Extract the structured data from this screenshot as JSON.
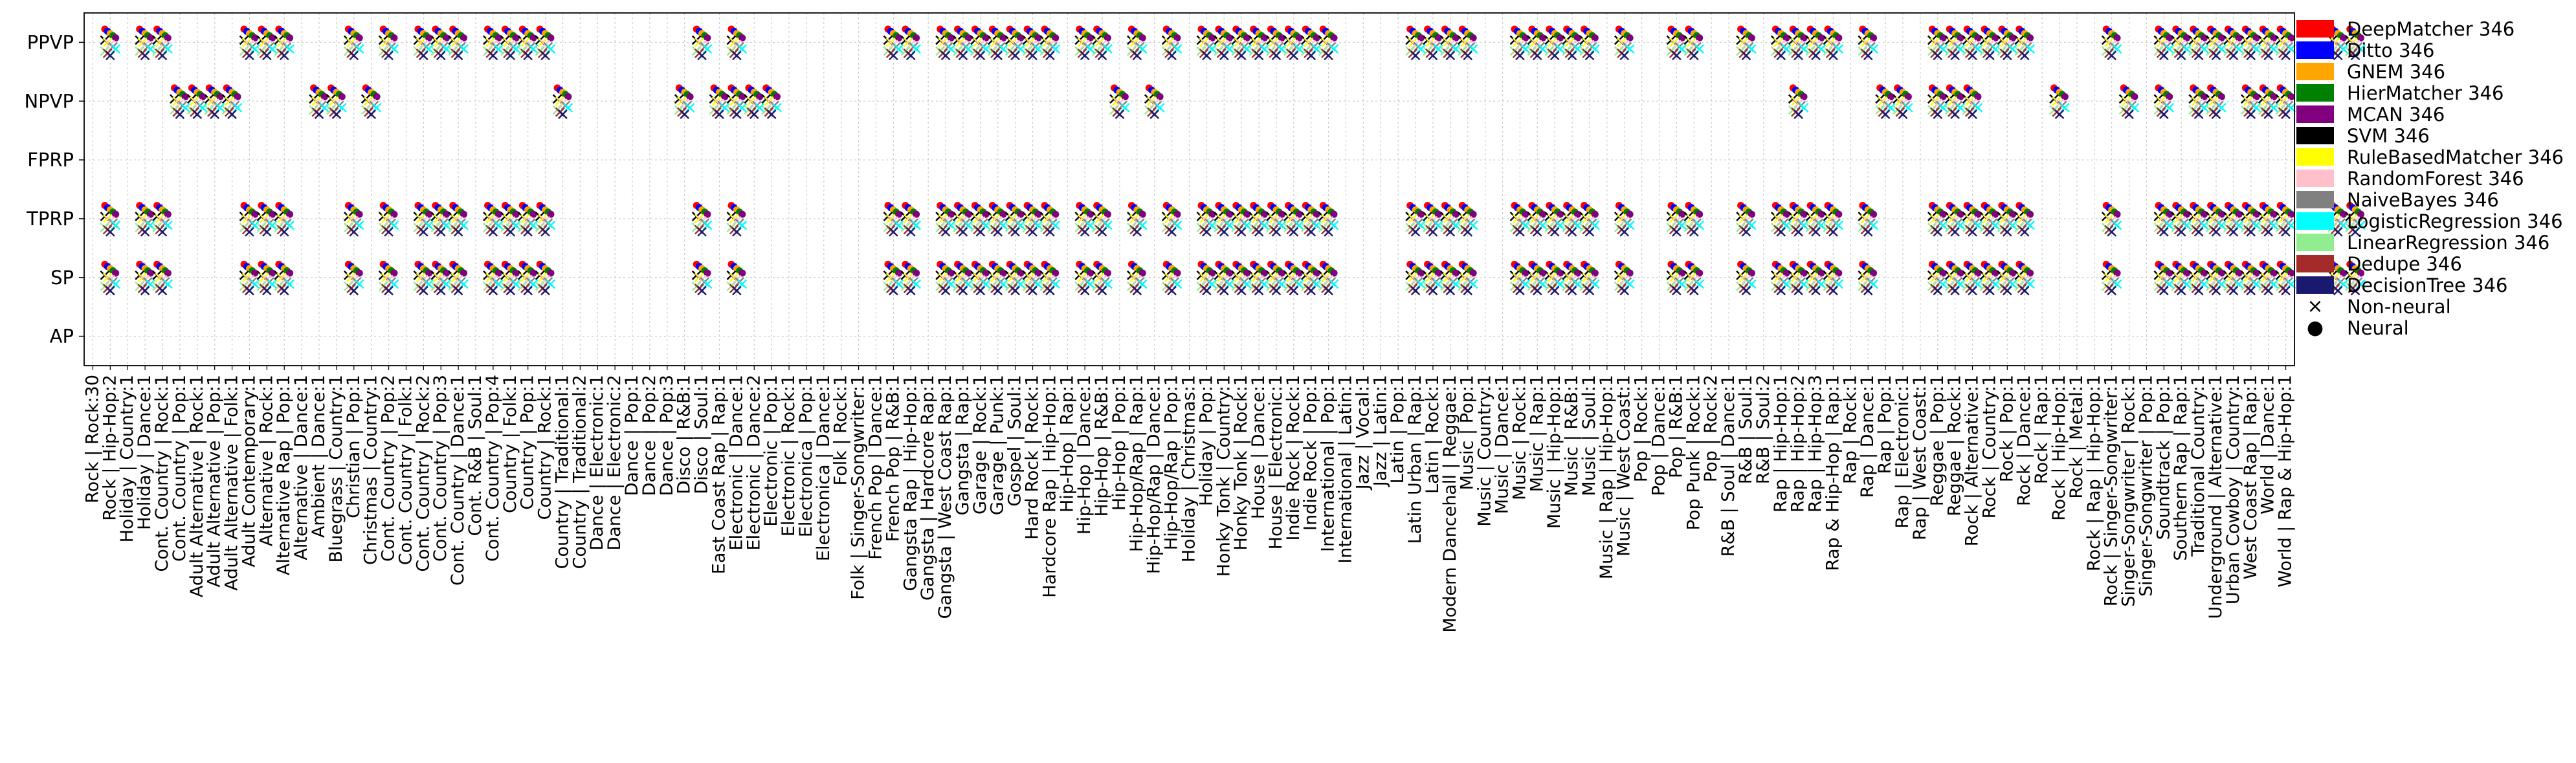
{
  "chart_data": {
    "type": "scatter",
    "y_categories": [
      "PPVP",
      "NPVP",
      "FPRP",
      "TPRP",
      "SP",
      "AP"
    ],
    "x_categories": [
      "Rock | Rock:30",
      "Rock | Hip-Hop:2",
      "Holiday | Country:1",
      "Holiday | Dance:1",
      "Cont. Country | Rock:1",
      "Cont. Country | Pop:1",
      "Adult Alternative | Rock:1",
      "Adult Alternative | Pop:1",
      "Adult Alternative | Folk:1",
      "Adult Contemporary:1",
      "Alternative | Rock:1",
      "Alternative Rap | Pop:1",
      "Alternative | Dance:1",
      "Ambient | Dance:1",
      "Bluegrass | Country:1",
      "Christian | Pop:1",
      "Christmas | Country:1",
      "Cont. Country | Pop:2",
      "Cont. Country | Folk:1",
      "Cont. Country | Rock:2",
      "Cont. Country | Pop:3",
      "Cont. Country | Dance:1",
      "Cont. R&B | Soul:1",
      "Cont. Country | Pop:4",
      "Country | Folk:1",
      "Country | Pop:1",
      "Country | Rock:1",
      "Country | Traditional:1",
      "Country | Traditional:2",
      "Dance | Electronic:1",
      "Dance | Electronic:2",
      "Dance | Pop:1",
      "Dance | Pop:2",
      "Dance | Pop:3",
      "Disco | R&B:1",
      "Disco | Soul:1",
      "East Coast Rap | Rap:1",
      "Electronic | Dance:1",
      "Electronic | Dance:2",
      "Electronic | Pop:1",
      "Electronic | Rock:1",
      "Electronica | Pop:1",
      "Electronica | Dance:1",
      "Folk | Rock:1",
      "Folk | Singer-Songwriter:1",
      "French Pop | Dance:1",
      "French Pop | R&B:1",
      "Gangsta Rap | Hip-Hop:1",
      "Gangsta | Hardcore Rap:1",
      "Gangsta | West Coast Rap:1",
      "Gangsta | Rap:1",
      "Garage | Rock:1",
      "Garage | Punk:1",
      "Gospel | Soul:1",
      "Hard Rock | Rock:1",
      "Hardcore Rap | Hip-Hop:1",
      "Hip-Hop | Rap:1",
      "Hip-Hop | Dance:1",
      "Hip-Hop | R&B:1",
      "Hip-Hop | Pop:1",
      "Hip-Hop/Rap | Rap:1",
      "Hip-Hop/Rap | Dance:1",
      "Hip-Hop/Rap | Pop:1",
      "Holiday | Christmas:1",
      "Holiday | Pop:1",
      "Honky Tonk | Country:1",
      "Honky Tonk | Rock:1",
      "House | Dance:1",
      "House | Electronic:1",
      "Indie Rock | Rock:1",
      "Indie Rock | Pop:1",
      "International | Pop:1",
      "International | Latin:1",
      "Jazz | Vocal:1",
      "Jazz | Latin:1",
      "Latin | Pop:1",
      "Latin Urban | Rap:1",
      "Latin | Rock:1",
      "Modern Dancehall | Reggae:1",
      "Music | Pop:1",
      "Music | Country:1",
      "Music | Dance:1",
      "Music | Rock:1",
      "Music | Rap:1",
      "Music | Hip-Hop:1",
      "Music | R&B:1",
      "Music | Soul:1",
      "Music | Rap | Hip-Hop:1",
      "Music | West Coast:1",
      "Pop | Rock:1",
      "Pop | Dance:1",
      "Pop | R&B:1",
      "Pop Punk | Rock:1",
      "Pop | Rock:2",
      "R&B | Soul | Dance:1",
      "R&B | Soul:1",
      "R&B | Soul:2",
      "Rap | Hip-Hop:1",
      "Rap | Hip-Hop:2",
      "Rap | Hip-Hop:3",
      "Rap & Hip-Hop | Rap:1",
      "Rap | Rock:1",
      "Rap | Dance:1",
      "Rap | Pop:1",
      "Rap | Electronic:1",
      "Rap | West Coast:1",
      "Reggae | Pop:1",
      "Reggae | Rock:1",
      "Rock | Alternative:1",
      "Rock | Country:1",
      "Rock | Pop:1",
      "Rock | Dance:1",
      "Rock | Rap:1",
      "Rock | Hip-Hop:1",
      "Rock | Metal:1",
      "Rock | Rap | Hip-Hop:1",
      "Rock | Singer-Songwriter:1",
      "Singer-Songwriter | Rock:1",
      "Singer-Songwriter | Pop:1",
      "Soundtrack | Pop:1",
      "Southern Rap | Rap:1",
      "Traditional Country:1",
      "Underground | Alternative:1",
      "Urban Cowboy | Country:1",
      "West Coast Rap | Rap:1",
      "World | Dance:1",
      "World | Rap & Hip-Hop:1"
    ],
    "series": [
      {
        "name": "DeepMatcher 346",
        "color": "#ff0000",
        "marker": "neural"
      },
      {
        "name": "Ditto 346",
        "color": "#0000ff",
        "marker": "neural"
      },
      {
        "name": "GNEM 346",
        "color": "#ffa500",
        "marker": "neural"
      },
      {
        "name": "HierMatcher 346",
        "color": "#008000",
        "marker": "neural"
      },
      {
        "name": "MCAN 346",
        "color": "#800080",
        "marker": "neural"
      },
      {
        "name": "SVM 346",
        "color": "#000000",
        "marker": "non-neural"
      },
      {
        "name": "RuleBasedMatcher 346",
        "color": "#ffff00",
        "marker": "non-neural"
      },
      {
        "name": "RandomForest 346",
        "color": "#ffc0cb",
        "marker": "non-neural"
      },
      {
        "name": "NaiveBayes 346",
        "color": "#808080",
        "marker": "non-neural"
      },
      {
        "name": "LogisticRegression 346",
        "color": "#00ffff",
        "marker": "non-neural"
      },
      {
        "name": "LinearRegression 346",
        "color": "#90ee90",
        "marker": "non-neural"
      },
      {
        "name": "Dedupe 346",
        "color": "#a52a2a",
        "marker": "non-neural"
      },
      {
        "name": "DecisionTree 346",
        "color": "#191970",
        "marker": "non-neural"
      }
    ],
    "marker_legend": [
      {
        "name": "Non-neural",
        "marker": "x"
      },
      {
        "name": "Neural",
        "marker": "circle"
      }
    ],
    "ppvp_indices": [
      1,
      3,
      4,
      9,
      10,
      11,
      15,
      17,
      19,
      20,
      21,
      23,
      24,
      25,
      26,
      35,
      37,
      46,
      47,
      49,
      50,
      51,
      52,
      53,
      54,
      55,
      57,
      58,
      60,
      62,
      64,
      65,
      66,
      67,
      68,
      69,
      70,
      71,
      76,
      77,
      78,
      79,
      82,
      83,
      84,
      85,
      86,
      88,
      91,
      92,
      95,
      97,
      98,
      99,
      100,
      102,
      106,
      107,
      108,
      109,
      110,
      111,
      116,
      119,
      120,
      121,
      122,
      123,
      124,
      125,
      126,
      129,
      130
    ],
    "npvp_indices": [
      5,
      6,
      7,
      8,
      13,
      14,
      16,
      27,
      34,
      36,
      37,
      38,
      39,
      59,
      61,
      98,
      103,
      104,
      106,
      107,
      108,
      113,
      117,
      119,
      121,
      122,
      124,
      125,
      126
    ],
    "tprp_indices": [
      1,
      3,
      4,
      9,
      10,
      11,
      15,
      17,
      19,
      20,
      21,
      23,
      24,
      25,
      26,
      35,
      37,
      46,
      47,
      49,
      50,
      51,
      52,
      53,
      54,
      55,
      57,
      58,
      60,
      62,
      64,
      65,
      66,
      67,
      68,
      69,
      70,
      71,
      76,
      77,
      78,
      79,
      82,
      83,
      84,
      85,
      86,
      88,
      91,
      92,
      95,
      97,
      98,
      99,
      100,
      102,
      106,
      107,
      108,
      109,
      110,
      111,
      116,
      119,
      120,
      121,
      122,
      123,
      124,
      125,
      126,
      129,
      130
    ],
    "sp_indices": [
      1,
      3,
      4,
      9,
      10,
      11,
      15,
      17,
      19,
      20,
      21,
      23,
      24,
      25,
      26,
      35,
      37,
      46,
      47,
      49,
      50,
      51,
      52,
      53,
      54,
      55,
      57,
      58,
      60,
      62,
      64,
      65,
      66,
      67,
      68,
      69,
      70,
      71,
      76,
      77,
      78,
      79,
      82,
      83,
      84,
      85,
      86,
      88,
      91,
      92,
      95,
      97,
      98,
      99,
      100,
      102,
      106,
      107,
      108,
      109,
      110,
      111,
      116,
      119,
      120,
      121,
      122,
      123,
      124,
      125,
      126,
      129,
      130
    ],
    "fprp_indices": [],
    "ap_indices": [],
    "grid": true,
    "legend_position": "right"
  }
}
